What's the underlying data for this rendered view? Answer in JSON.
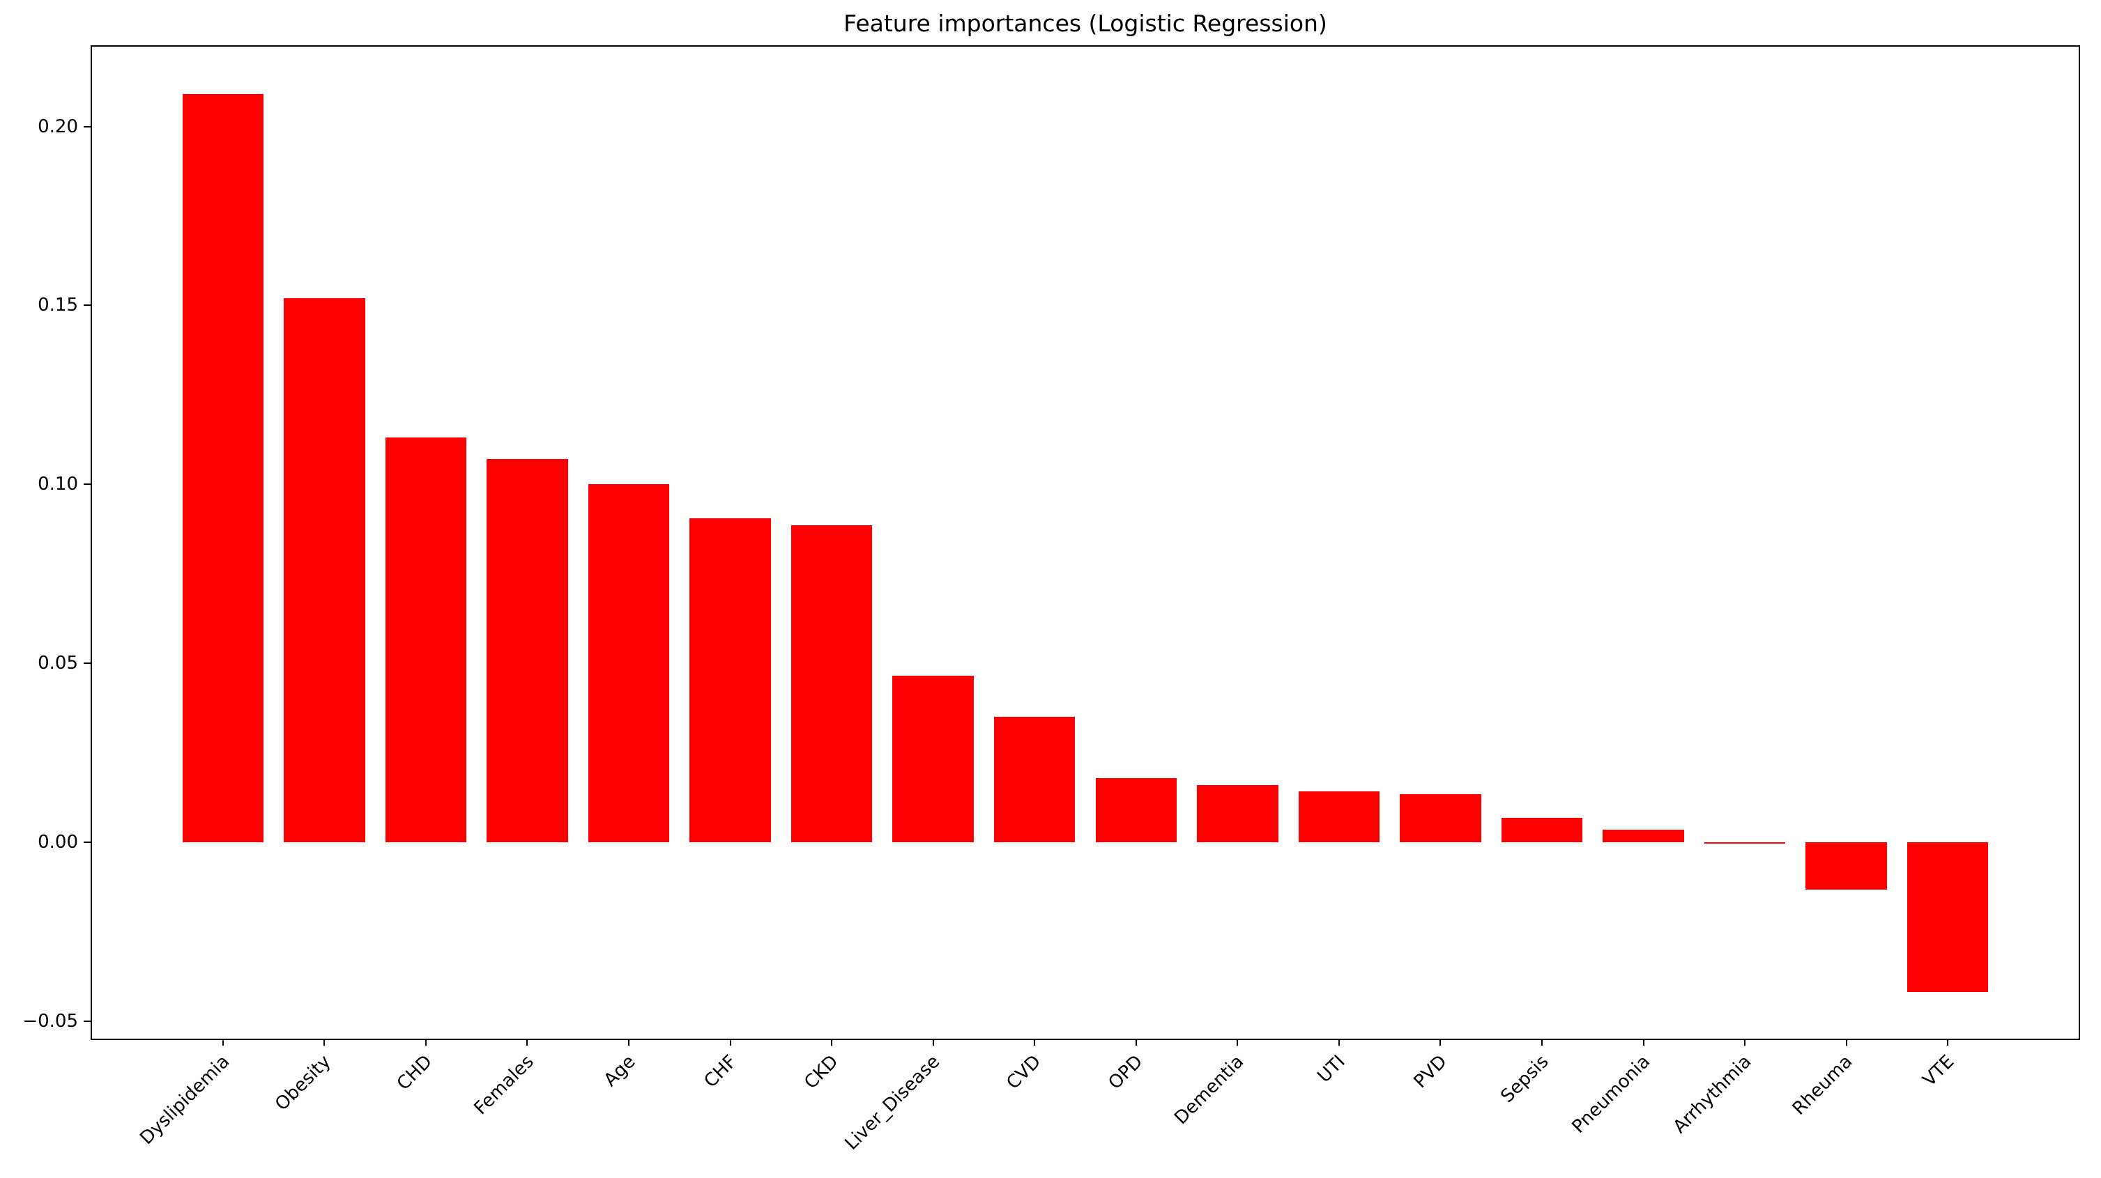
{
  "figure": {
    "background_color": "#ffffff",
    "axis_color": "#000000",
    "text_color": "#000000"
  },
  "chart_data": {
    "type": "bar",
    "title": "Feature importances (Logistic Regression)",
    "xlabel": "",
    "ylabel": "",
    "grid": false,
    "legend": null,
    "bar_color": "#ff0000",
    "categories": [
      "Dyslipidemia",
      "Obesity",
      "CHD",
      "Females",
      "Age",
      "CHF",
      "CKD",
      "Liver_Disease",
      "CVD",
      "OPD",
      "Dementia",
      "UTI",
      "PVD",
      "Sepsis",
      "Pneumonia",
      "Arrhythmia",
      "Rheuma",
      "VTE"
    ],
    "values": [
      0.209,
      0.152,
      0.113,
      0.107,
      0.1,
      0.0905,
      0.0885,
      0.0465,
      0.035,
      0.018,
      0.016,
      0.0142,
      0.0134,
      0.0068,
      0.0035,
      -0.0004,
      -0.0133,
      -0.0418
    ],
    "x_tick_label_rotation_deg": 45,
    "y_tick_labels": [
      "0.20",
      "0.15",
      "0.10",
      "0.05",
      "0.00",
      "−0.05"
    ],
    "y_tick_values": [
      0.2,
      0.15,
      0.1,
      0.05,
      0.0,
      -0.05
    ],
    "ylim": [
      -0.0549,
      0.2223
    ],
    "xlim": [
      -1.29,
      18.29
    ],
    "bar_width_units": 0.8
  }
}
